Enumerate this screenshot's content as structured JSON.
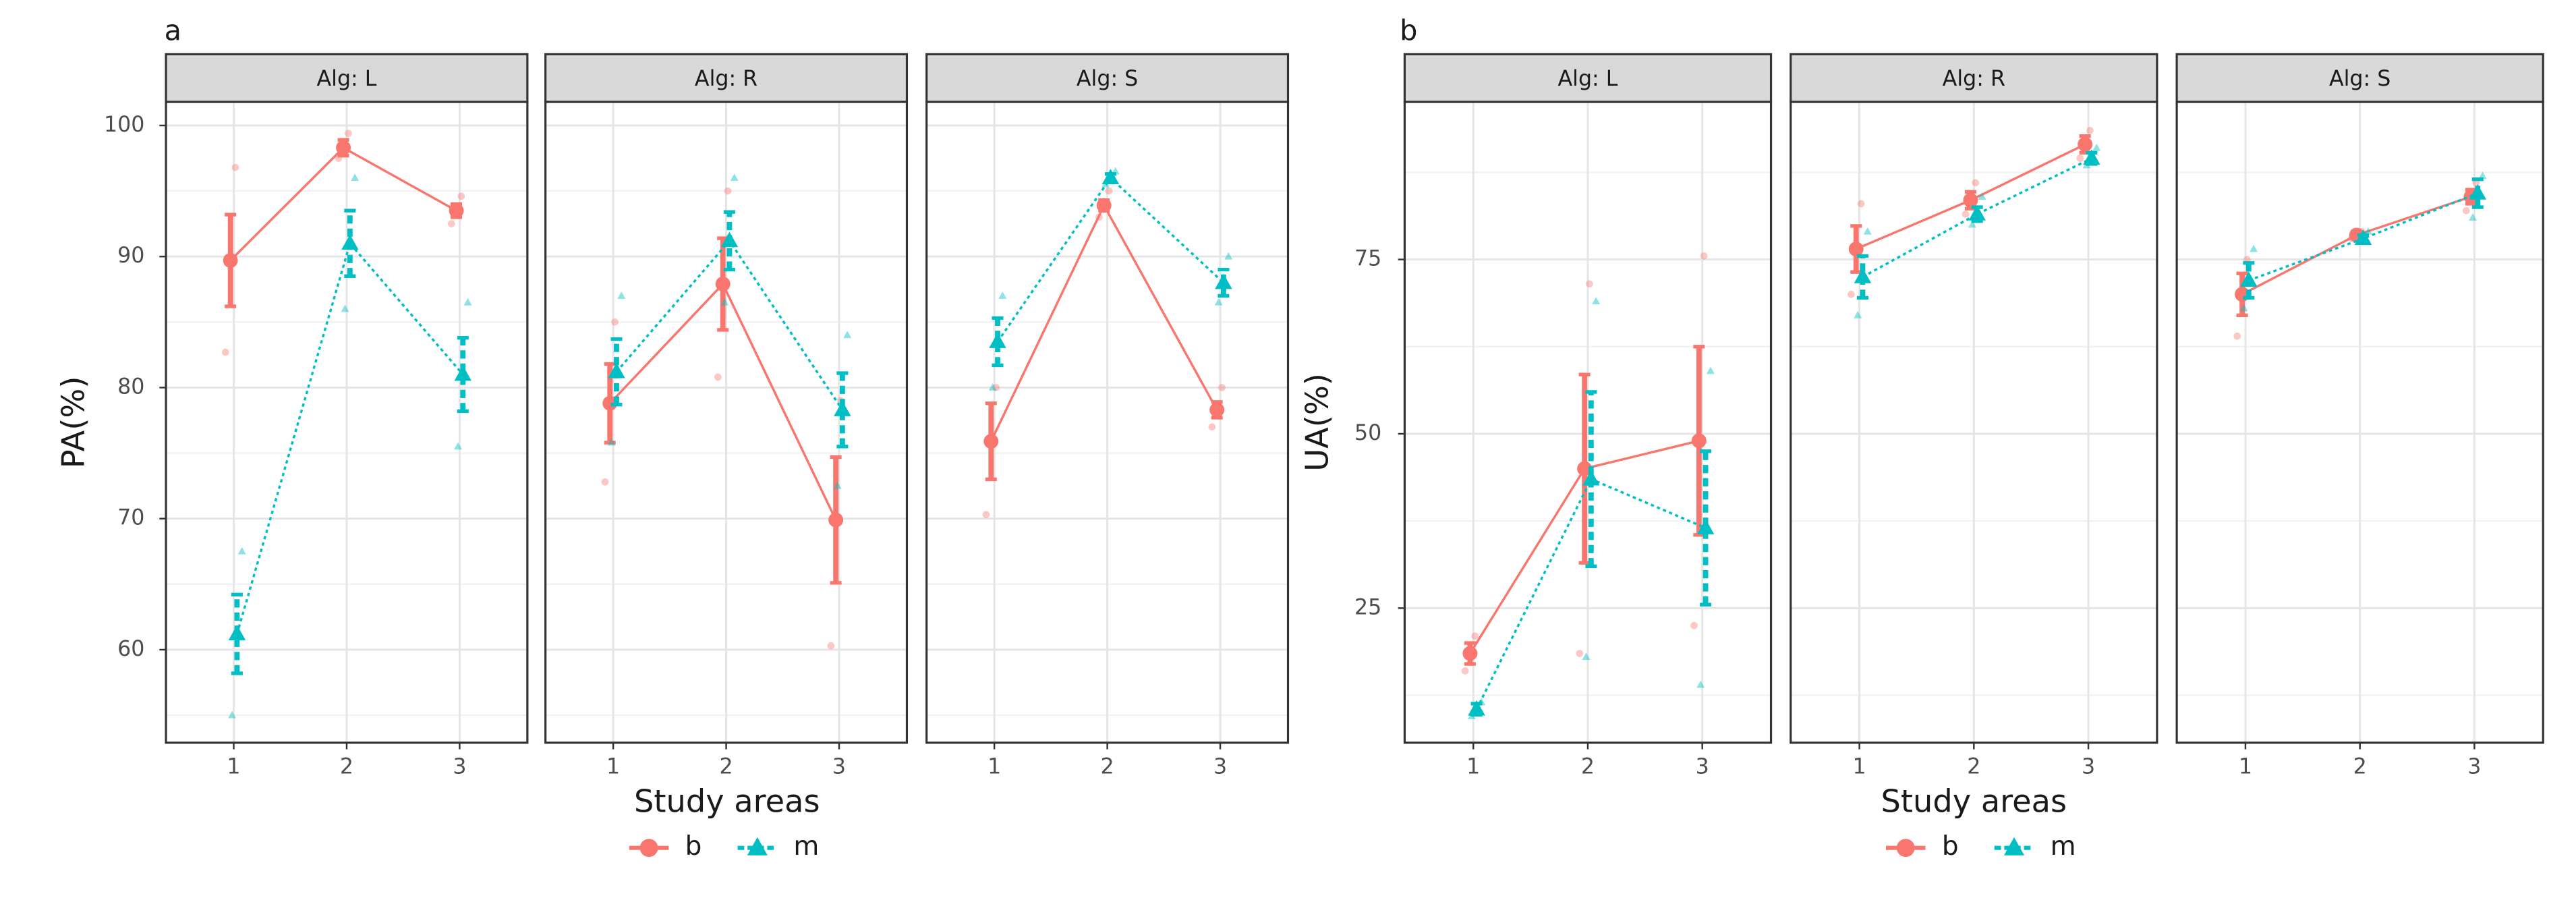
{
  "chart_data": [
    {
      "type": "line",
      "panel_label": "a",
      "ylabel": "PA(%)",
      "xlabel": "Study areas",
      "categories": [
        "1",
        "2",
        "3"
      ],
      "ylim": [
        52.9,
        101.8
      ],
      "yticks": [
        60,
        70,
        80,
        90,
        100
      ],
      "grid": true,
      "facets": [
        {
          "title": "Alg: L",
          "series": [
            {
              "name": "b",
              "color": "#f8766d",
              "values": [
                89.7,
                98.3,
                93.5
              ],
              "errors": [
                3.5,
                0.6,
                0.5
              ],
              "points": [
                [
                  96.8,
                  82.7
                ],
                [
                  99.4,
                  97.5
                ],
                [
                  94.6,
                  92.5
                ]
              ]
            },
            {
              "name": "m",
              "color": "#00bfc4",
              "values": [
                61.2,
                91,
                81
              ],
              "errors": [
                3,
                2.5,
                2.8
              ],
              "points": [
                [
                  67.5,
                  55
                ],
                [
                  96,
                  86
                ],
                [
                  86.5,
                  75.5
                ]
              ]
            }
          ]
        },
        {
          "title": "Alg: R",
          "series": [
            {
              "name": "b",
              "color": "#f8766d",
              "values": [
                78.8,
                87.9,
                69.9
              ],
              "errors": [
                3,
                3.5,
                4.8
              ],
              "points": [
                [
                  85,
                  72.8
                ],
                [
                  95,
                  80.8
                ],
                [
                  79,
                  60.3
                ]
              ]
            },
            {
              "name": "m",
              "color": "#00bfc4",
              "values": [
                81.2,
                91.2,
                78.3
              ],
              "errors": [
                2.5,
                2.2,
                2.8
              ],
              "points": [
                [
                  87,
                  75.8
                ],
                [
                  96,
                  86.5
                ],
                [
                  84,
                  72.5
                ]
              ]
            }
          ]
        },
        {
          "title": "Alg: S",
          "series": [
            {
              "name": "b",
              "color": "#f8766d",
              "values": [
                75.9,
                93.9,
                78.3
              ],
              "errors": [
                2.9,
                0.4,
                0.6
              ],
              "points": [
                [
                  80,
                  70.3
                ],
                [
                  95,
                  93
                ],
                [
                  80,
                  77
                ]
              ]
            },
            {
              "name": "m",
              "color": "#00bfc4",
              "values": [
                83.5,
                96,
                88
              ],
              "errors": [
                1.8,
                0.3,
                1
              ],
              "points": [
                [
                  87,
                  80
                ],
                [
                  96.5,
                  95.5
                ],
                [
                  90,
                  86.5
                ]
              ]
            }
          ]
        }
      ]
    },
    {
      "type": "line",
      "panel_label": "b",
      "ylabel": "UA(%)",
      "xlabel": "Study areas",
      "categories": [
        "1",
        "2",
        "3"
      ],
      "ylim": [
        5.7,
        97.6
      ],
      "yticks": [
        25,
        50,
        75
      ],
      "grid": true,
      "facets": [
        {
          "title": "Alg: L",
          "series": [
            {
              "name": "b",
              "color": "#f8766d",
              "values": [
                18.5,
                45,
                49
              ],
              "errors": [
                1.5,
                13.5,
                13.5
              ],
              "points": [
                [
                  21,
                  16
                ],
                [
                  71.5,
                  18.5
                ],
                [
                  75.5,
                  22.5
                ]
              ]
            },
            {
              "name": "m",
              "color": "#00bfc4",
              "values": [
                10.5,
                43.5,
                36.5
              ],
              "errors": [
                0.8,
                12.5,
                11
              ],
              "points": [
                [
                  11.5,
                  9.5
                ],
                [
                  69,
                  18
                ],
                [
                  59,
                  14
                ]
              ]
            }
          ]
        },
        {
          "title": "Alg: R",
          "series": [
            {
              "name": "b",
              "color": "#f8766d",
              "values": [
                76.5,
                83.5,
                91.5
              ],
              "errors": [
                3.3,
                1.2,
                1.2
              ],
              "points": [
                [
                  83,
                  70
                ],
                [
                  86,
                  81.5
                ],
                [
                  93.5,
                  89.5
                ]
              ]
            },
            {
              "name": "m",
              "color": "#00bfc4",
              "values": [
                72.5,
                81.5,
                89.5
              ],
              "errors": [
                3,
                1,
                0.8
              ],
              "points": [
                [
                  79,
                  67
                ],
                [
                  84,
                  80
                ],
                [
                  91,
                  88.5
                ]
              ]
            }
          ]
        },
        {
          "title": "Alg: S",
          "series": [
            {
              "name": "b",
              "color": "#f8766d",
              "values": [
                70,
                78.5,
                84
              ],
              "errors": [
                3,
                0.5,
                1
              ],
              "points": [
                [
                  75,
                  64
                ],
                [
                  79,
                  78
                ],
                [
                  86,
                  82
                ]
              ]
            },
            {
              "name": "m",
              "color": "#00bfc4",
              "values": [
                72,
                78,
                84.5
              ],
              "errors": [
                2.5,
                0.5,
                2
              ],
              "points": [
                [
                  76.5,
                  68
                ],
                [
                  79,
                  77.5
                ],
                [
                  87,
                  81
                ]
              ]
            }
          ]
        }
      ]
    }
  ]
}
